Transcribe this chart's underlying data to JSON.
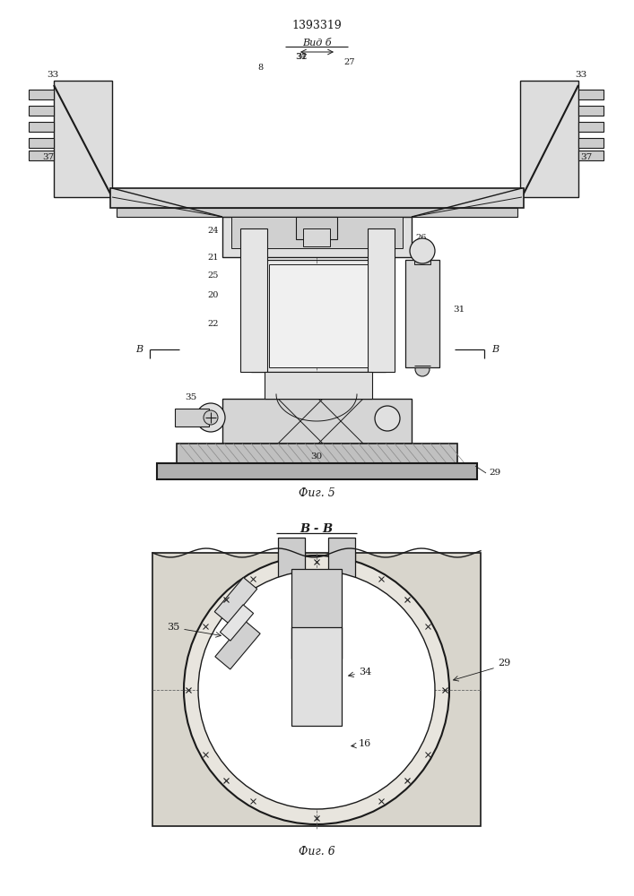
{
  "patent_number": "1393319",
  "fig5_label": "Вид б",
  "fig5_caption": "Фиг. 5",
  "fig6_label": "В - В",
  "fig6_caption": "Фиг. 6",
  "line_color": "#1a1a1a",
  "light_fill": "#e8e8e8",
  "mid_fill": "#cccccc",
  "dark_fill": "#aaaaaa",
  "hatch_fill": "#bbbbbb"
}
